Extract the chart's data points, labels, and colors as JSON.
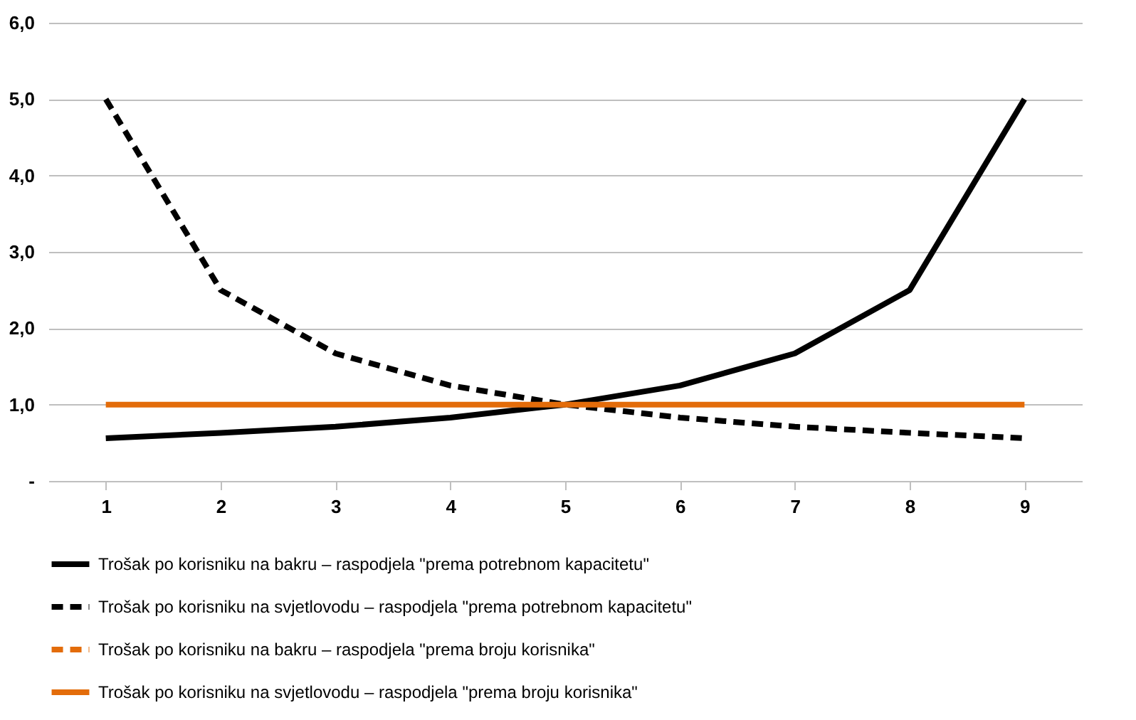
{
  "chart_data": {
    "type": "line",
    "categories": [
      "1",
      "2",
      "3",
      "4",
      "5",
      "6",
      "7",
      "8",
      "9"
    ],
    "series": [
      {
        "name": "Trošak po korisniku na bakru – raspodjela \"prema potrebnom kapacitetu\"",
        "color": "#000000",
        "line_style": "solid",
        "values": [
          0.56,
          0.63,
          0.71,
          0.83,
          1.0,
          1.25,
          1.67,
          2.5,
          5.0
        ]
      },
      {
        "name": "Trošak po korisniku na svjetlovodu – raspodjela \"prema potrebnom kapacitetu\"",
        "color": "#000000",
        "line_style": "dashed",
        "values": [
          5.0,
          2.5,
          1.67,
          1.25,
          1.0,
          0.83,
          0.71,
          0.63,
          0.56
        ]
      },
      {
        "name": "Trošak po korisniku na bakru – raspodjela \"prema broju korisnika\"",
        "color": "#e36c0a",
        "line_style": "dashed",
        "values": [
          null,
          null,
          null,
          null,
          null,
          null,
          null,
          null,
          null
        ]
      },
      {
        "name": "Trošak po korisniku na svjetlovodu – raspodjela \"prema broju korisnika\"",
        "color": "#e36c0a",
        "line_style": "solid",
        "values": [
          1.0,
          1.0,
          1.0,
          1.0,
          1.0,
          1.0,
          1.0,
          1.0,
          1.0
        ]
      }
    ],
    "ylim": [
      0,
      6
    ],
    "yticks": [
      {
        "value": 0,
        "label": "-"
      },
      {
        "value": 1,
        "label": "1,0"
      },
      {
        "value": 2,
        "label": "2,0"
      },
      {
        "value": 3,
        "label": "3,0"
      },
      {
        "value": 4,
        "label": "4,0"
      },
      {
        "value": 5,
        "label": "5,0"
      },
      {
        "value": 6,
        "label": "6,0"
      }
    ],
    "grid": "y",
    "legend": "bottom",
    "marker": "none"
  }
}
